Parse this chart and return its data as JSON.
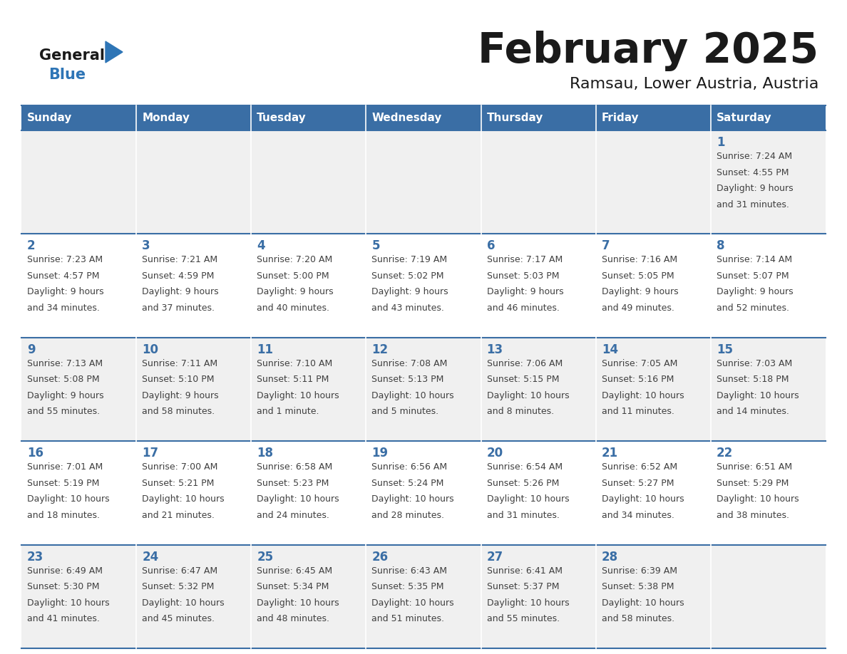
{
  "title": "February 2025",
  "subtitle": "Ramsau, Lower Austria, Austria",
  "days_of_week": [
    "Sunday",
    "Monday",
    "Tuesday",
    "Wednesday",
    "Thursday",
    "Friday",
    "Saturday"
  ],
  "header_bg": "#3A6EA5",
  "header_text": "#FFFFFF",
  "row_bg_odd": "#F0F0F0",
  "row_bg_even": "#FFFFFF",
  "cell_line_color": "#3A6EA5",
  "day_number_color": "#3A6EA5",
  "info_text_color": "#404040",
  "title_color": "#1a1a1a",
  "subtitle_color": "#1a1a1a",
  "logo_general_color": "#1a1a1a",
  "logo_blue_color": "#2E75B6",
  "logo_triangle_color": "#2E75B6",
  "calendar_data": [
    [
      null,
      null,
      null,
      null,
      null,
      null,
      {
        "day": 1,
        "lines": [
          "Sunrise: 7:24 AM",
          "Sunset: 4:55 PM",
          "Daylight: 9 hours",
          "and 31 minutes."
        ]
      }
    ],
    [
      {
        "day": 2,
        "lines": [
          "Sunrise: 7:23 AM",
          "Sunset: 4:57 PM",
          "Daylight: 9 hours",
          "and 34 minutes."
        ]
      },
      {
        "day": 3,
        "lines": [
          "Sunrise: 7:21 AM",
          "Sunset: 4:59 PM",
          "Daylight: 9 hours",
          "and 37 minutes."
        ]
      },
      {
        "day": 4,
        "lines": [
          "Sunrise: 7:20 AM",
          "Sunset: 5:00 PM",
          "Daylight: 9 hours",
          "and 40 minutes."
        ]
      },
      {
        "day": 5,
        "lines": [
          "Sunrise: 7:19 AM",
          "Sunset: 5:02 PM",
          "Daylight: 9 hours",
          "and 43 minutes."
        ]
      },
      {
        "day": 6,
        "lines": [
          "Sunrise: 7:17 AM",
          "Sunset: 5:03 PM",
          "Daylight: 9 hours",
          "and 46 minutes."
        ]
      },
      {
        "day": 7,
        "lines": [
          "Sunrise: 7:16 AM",
          "Sunset: 5:05 PM",
          "Daylight: 9 hours",
          "and 49 minutes."
        ]
      },
      {
        "day": 8,
        "lines": [
          "Sunrise: 7:14 AM",
          "Sunset: 5:07 PM",
          "Daylight: 9 hours",
          "and 52 minutes."
        ]
      }
    ],
    [
      {
        "day": 9,
        "lines": [
          "Sunrise: 7:13 AM",
          "Sunset: 5:08 PM",
          "Daylight: 9 hours",
          "and 55 minutes."
        ]
      },
      {
        "day": 10,
        "lines": [
          "Sunrise: 7:11 AM",
          "Sunset: 5:10 PM",
          "Daylight: 9 hours",
          "and 58 minutes."
        ]
      },
      {
        "day": 11,
        "lines": [
          "Sunrise: 7:10 AM",
          "Sunset: 5:11 PM",
          "Daylight: 10 hours",
          "and 1 minute."
        ]
      },
      {
        "day": 12,
        "lines": [
          "Sunrise: 7:08 AM",
          "Sunset: 5:13 PM",
          "Daylight: 10 hours",
          "and 5 minutes."
        ]
      },
      {
        "day": 13,
        "lines": [
          "Sunrise: 7:06 AM",
          "Sunset: 5:15 PM",
          "Daylight: 10 hours",
          "and 8 minutes."
        ]
      },
      {
        "day": 14,
        "lines": [
          "Sunrise: 7:05 AM",
          "Sunset: 5:16 PM",
          "Daylight: 10 hours",
          "and 11 minutes."
        ]
      },
      {
        "day": 15,
        "lines": [
          "Sunrise: 7:03 AM",
          "Sunset: 5:18 PM",
          "Daylight: 10 hours",
          "and 14 minutes."
        ]
      }
    ],
    [
      {
        "day": 16,
        "lines": [
          "Sunrise: 7:01 AM",
          "Sunset: 5:19 PM",
          "Daylight: 10 hours",
          "and 18 minutes."
        ]
      },
      {
        "day": 17,
        "lines": [
          "Sunrise: 7:00 AM",
          "Sunset: 5:21 PM",
          "Daylight: 10 hours",
          "and 21 minutes."
        ]
      },
      {
        "day": 18,
        "lines": [
          "Sunrise: 6:58 AM",
          "Sunset: 5:23 PM",
          "Daylight: 10 hours",
          "and 24 minutes."
        ]
      },
      {
        "day": 19,
        "lines": [
          "Sunrise: 6:56 AM",
          "Sunset: 5:24 PM",
          "Daylight: 10 hours",
          "and 28 minutes."
        ]
      },
      {
        "day": 20,
        "lines": [
          "Sunrise: 6:54 AM",
          "Sunset: 5:26 PM",
          "Daylight: 10 hours",
          "and 31 minutes."
        ]
      },
      {
        "day": 21,
        "lines": [
          "Sunrise: 6:52 AM",
          "Sunset: 5:27 PM",
          "Daylight: 10 hours",
          "and 34 minutes."
        ]
      },
      {
        "day": 22,
        "lines": [
          "Sunrise: 6:51 AM",
          "Sunset: 5:29 PM",
          "Daylight: 10 hours",
          "and 38 minutes."
        ]
      }
    ],
    [
      {
        "day": 23,
        "lines": [
          "Sunrise: 6:49 AM",
          "Sunset: 5:30 PM",
          "Daylight: 10 hours",
          "and 41 minutes."
        ]
      },
      {
        "day": 24,
        "lines": [
          "Sunrise: 6:47 AM",
          "Sunset: 5:32 PM",
          "Daylight: 10 hours",
          "and 45 minutes."
        ]
      },
      {
        "day": 25,
        "lines": [
          "Sunrise: 6:45 AM",
          "Sunset: 5:34 PM",
          "Daylight: 10 hours",
          "and 48 minutes."
        ]
      },
      {
        "day": 26,
        "lines": [
          "Sunrise: 6:43 AM",
          "Sunset: 5:35 PM",
          "Daylight: 10 hours",
          "and 51 minutes."
        ]
      },
      {
        "day": 27,
        "lines": [
          "Sunrise: 6:41 AM",
          "Sunset: 5:37 PM",
          "Daylight: 10 hours",
          "and 55 minutes."
        ]
      },
      {
        "day": 28,
        "lines": [
          "Sunrise: 6:39 AM",
          "Sunset: 5:38 PM",
          "Daylight: 10 hours",
          "and 58 minutes."
        ]
      },
      null
    ]
  ]
}
